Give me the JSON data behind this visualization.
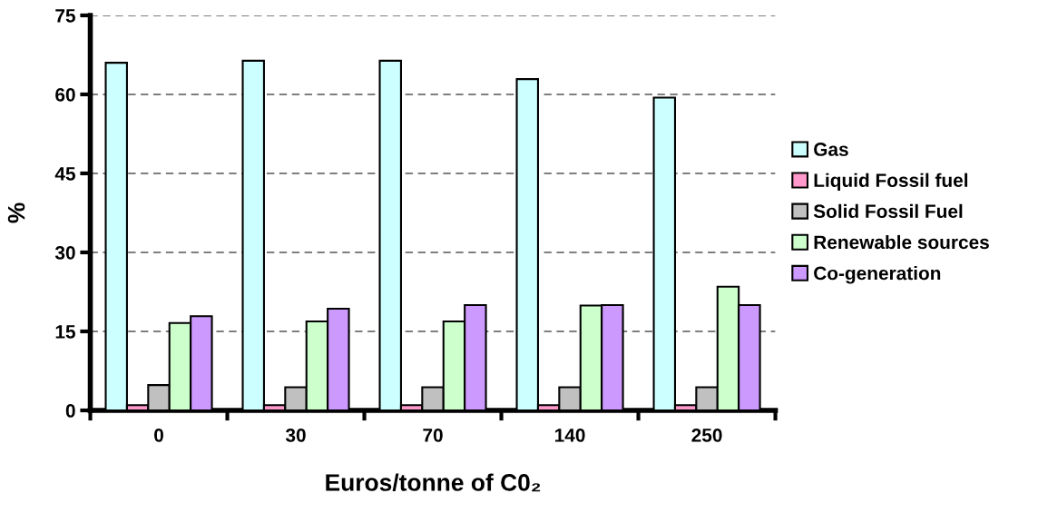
{
  "chart_data": {
    "type": "bar",
    "xlabel": "Euros/tonne of C0₂",
    "ylabel": "%",
    "categories": [
      "0",
      "30",
      "70",
      "140",
      "250"
    ],
    "series": [
      {
        "name": "Gas",
        "color": "#ccffff",
        "values": [
          66.0,
          66.4,
          66.4,
          62.9,
          59.4
        ]
      },
      {
        "name": "Liquid Fossil fuel",
        "color": "#ff99cc",
        "values": [
          1.0,
          1.0,
          1.0,
          1.0,
          1.0
        ]
      },
      {
        "name": "Solid Fossil Fuel",
        "color": "#c0c0c0",
        "values": [
          4.8,
          4.4,
          4.4,
          4.4,
          4.4
        ]
      },
      {
        "name": "Renewable sources",
        "color": "#ccffcc",
        "values": [
          16.6,
          16.9,
          16.9,
          19.9,
          23.5
        ]
      },
      {
        "name": "Co-generation",
        "color": "#cc99ff",
        "values": [
          17.9,
          19.3,
          20.0,
          20.0,
          20.0
        ]
      }
    ],
    "ylim": [
      0,
      75
    ],
    "yticks": [
      0,
      15,
      30,
      45,
      60,
      75
    ],
    "grid": "y",
    "legend": "right"
  }
}
